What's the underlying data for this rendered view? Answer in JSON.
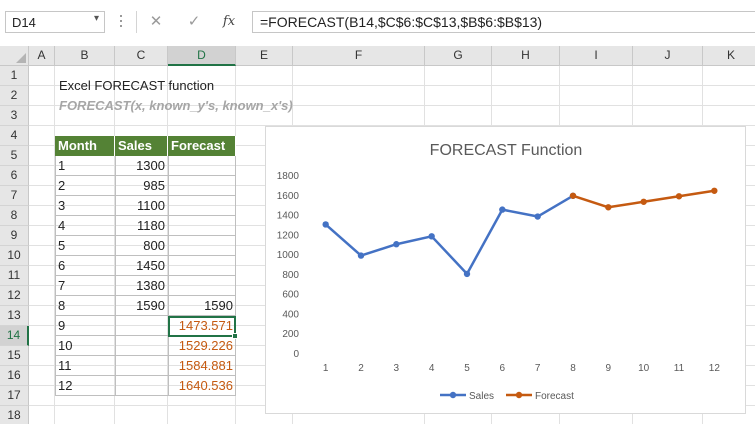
{
  "formula_bar": {
    "name_box": "D14",
    "cancel_icon": "✕",
    "enter_icon": "✓",
    "fx_label": "fx",
    "formula": "=FORECAST(B14,$C$6:$C$13,$B$6:$B$13)"
  },
  "columns": [
    "A",
    "B",
    "C",
    "D",
    "E",
    "F",
    "G",
    "H",
    "I",
    "J",
    "K"
  ],
  "rows": [
    "1",
    "2",
    "3",
    "4",
    "5",
    "6",
    "7",
    "8",
    "9",
    "10",
    "11",
    "12",
    "13",
    "14",
    "15",
    "16",
    "17",
    "18"
  ],
  "selected": {
    "column": "D",
    "row": "14"
  },
  "sheet": {
    "title": "Excel FORECAST function",
    "syntax": "FORECAST(x, known_y's, known_x's)"
  },
  "table": {
    "headers": [
      "Month",
      "Sales",
      "Forecast"
    ],
    "rows": [
      [
        "1",
        "1300",
        ""
      ],
      [
        "2",
        "985",
        ""
      ],
      [
        "3",
        "1100",
        ""
      ],
      [
        "4",
        "1180",
        ""
      ],
      [
        "5",
        "800",
        ""
      ],
      [
        "6",
        "1450",
        ""
      ],
      [
        "7",
        "1380",
        ""
      ],
      [
        "8",
        "1590",
        "1590"
      ],
      [
        "9",
        "",
        "1473.571"
      ],
      [
        "10",
        "",
        "1529.226"
      ],
      [
        "11",
        "",
        "1584.881"
      ],
      [
        "12",
        "",
        "1640.536"
      ]
    ],
    "header_color": "#548235",
    "forecast_color": "#c55a11"
  },
  "chart_data": {
    "type": "line",
    "title": "FORECAST Function",
    "categories": [
      "1",
      "2",
      "3",
      "4",
      "5",
      "6",
      "7",
      "8",
      "9",
      "10",
      "11",
      "12"
    ],
    "x": [
      1,
      2,
      3,
      4,
      5,
      6,
      7,
      8,
      9,
      10,
      11,
      12
    ],
    "series": [
      {
        "name": "Sales",
        "color": "#4472c4",
        "values": [
          1300,
          985,
          1100,
          1180,
          800,
          1450,
          1380,
          1590,
          null,
          null,
          null,
          null
        ]
      },
      {
        "name": "Forecast",
        "color": "#c55a11",
        "values": [
          null,
          null,
          null,
          null,
          null,
          null,
          null,
          1590,
          1473.571,
          1529.226,
          1584.881,
          1640.536
        ]
      }
    ],
    "ylim": [
      0,
      1800
    ],
    "yticks": [
      "0",
      "200",
      "400",
      "600",
      "800",
      "1000",
      "1200",
      "1400",
      "1600",
      "1800"
    ],
    "grid": false,
    "legend": "bottom"
  }
}
